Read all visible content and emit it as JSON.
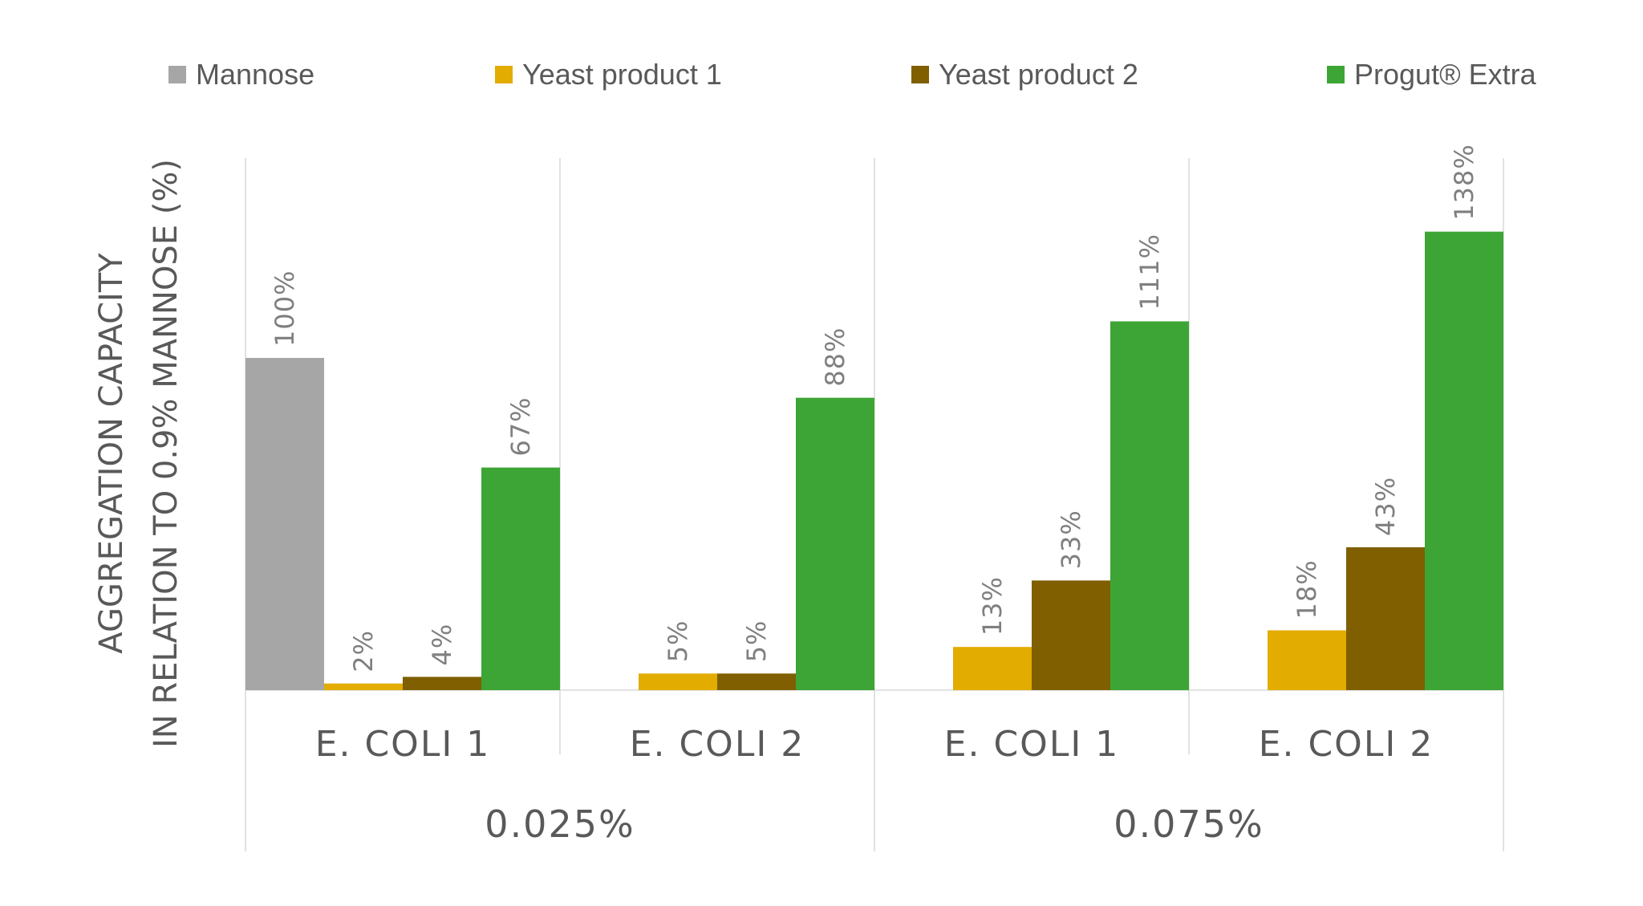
{
  "chart_data": {
    "type": "bar",
    "title": "",
    "ylabel": [
      "AGGREGATION CAPACITY",
      "IN RELATION TO 0.9% MANNOSE (%)"
    ],
    "xlabel": "",
    "groups": [
      {
        "label": "0.025%",
        "categories": [
          "E. COLI 1",
          "E. COLI 2"
        ]
      },
      {
        "label": "0.075%",
        "categories": [
          "E. COLI 1",
          "E. COLI 2"
        ]
      }
    ],
    "categories": [
      "E. COLI 1",
      "E. COLI 2",
      "E. COLI 1",
      "E. COLI 2"
    ],
    "series": [
      {
        "name": "Mannose",
        "color": "#a6a6a6",
        "values": [
          100,
          null,
          null,
          null
        ]
      },
      {
        "name": "Yeast product 1",
        "color": "#e2ac00",
        "values": [
          2,
          5,
          13,
          18
        ]
      },
      {
        "name": "Yeast product 2",
        "color": "#7f5f00",
        "values": [
          4,
          5,
          33,
          43
        ]
      },
      {
        "name": "Progut® Extra",
        "color": "#3da535",
        "values": [
          67,
          88,
          111,
          138
        ]
      }
    ],
    "data_label_suffix": "%",
    "ylim": [
      0,
      160
    ],
    "grid": false,
    "legend": "top"
  }
}
